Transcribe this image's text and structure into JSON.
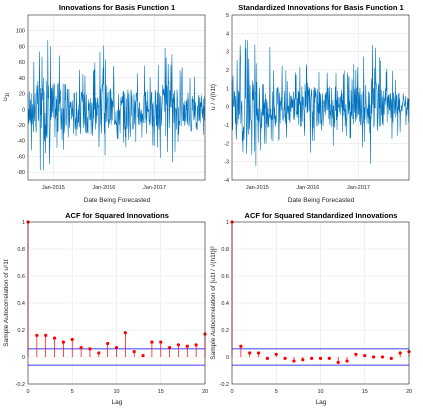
{
  "chart_data": [
    {
      "type": "line",
      "title": "Innovations for Basis Function 1",
      "xlabel": "Date Being Forecasted",
      "ylabel": "u",
      "ylabel_sub": "1t",
      "x_tick_labels": [
        "Jan-2015",
        "Jan-2016",
        "Jan-2017"
      ],
      "x_range": [
        "Jul-2014",
        "Jan-2018"
      ],
      "ylim": [
        -90,
        120
      ],
      "y_ticks": [
        -80,
        -60,
        -40,
        -20,
        0,
        20,
        40,
        60,
        80,
        100
      ],
      "grid": true,
      "color": "#0072BD",
      "x": [
        "Jul-2014",
        "Oct-2014",
        "Jan-2015",
        "Apr-2015",
        "Jul-2015",
        "Oct-2015",
        "Jan-2016",
        "Apr-2016",
        "Jul-2016",
        "Oct-2016",
        "Jan-2017",
        "Apr-2017",
        "Jul-2017",
        "Oct-2017",
        "Jan-2018"
      ],
      "y_upper": [
        60,
        105,
        95,
        90,
        65,
        60,
        82,
        55,
        70,
        60,
        62,
        82,
        58,
        55,
        45
      ],
      "y_lower": [
        -45,
        -80,
        -72,
        -55,
        -45,
        -40,
        -78,
        -45,
        -55,
        -40,
        -50,
        -82,
        -50,
        -42,
        -35
      ]
    },
    {
      "type": "line",
      "title": "Standardized Innovations for Basis Function 1",
      "xlabel": "Date Being Forecasted",
      "ylabel": "u / √(h1t)",
      "x_tick_labels": [
        "Jan-2015",
        "Jan-2016",
        "Jan-2017"
      ],
      "x_range": [
        "Jul-2014",
        "Jan-2018"
      ],
      "ylim": [
        -4,
        5
      ],
      "y_ticks": [
        -4,
        -3,
        -2,
        -1,
        0,
        1,
        2,
        3,
        4,
        5
      ],
      "grid": true,
      "color": "#0072BD",
      "x": [
        "Jul-2014",
        "Oct-2014",
        "Jan-2015",
        "Apr-2015",
        "Jul-2015",
        "Oct-2015",
        "Jan-2016",
        "Apr-2016",
        "Jul-2016",
        "Oct-2016",
        "Jan-2017",
        "Apr-2017",
        "Jul-2017",
        "Oct-2017",
        "Jan-2018"
      ],
      "y_upper": [
        1.8,
        4.2,
        3.2,
        3.4,
        2.2,
        2.4,
        3.2,
        2.6,
        3.0,
        2.1,
        2.5,
        3.6,
        2.5,
        1.9,
        1.5
      ],
      "y_lower": [
        -1.8,
        -2.8,
        -3.3,
        -2.4,
        -2.0,
        -1.6,
        -2.9,
        -1.8,
        -2.2,
        -1.6,
        -2.2,
        -3.6,
        -2.0,
        -1.7,
        -1.3
      ]
    },
    {
      "type": "stem",
      "title": "ACF for Squared Innovations",
      "xlabel": "Lag",
      "ylabel": "Sample Autocorrelation of u²1t",
      "xlim": [
        0,
        20
      ],
      "x_ticks": [
        0,
        5,
        10,
        15,
        20
      ],
      "ylim": [
        -0.2,
        1
      ],
      "y_ticks": [
        -0.2,
        0,
        0.2,
        0.4,
        0.6,
        0.8,
        1
      ],
      "grid": true,
      "stem_color": "#ff0000",
      "bound_color": "#0000ff",
      "bounds": [
        0.06,
        -0.06
      ],
      "lags": [
        0,
        1,
        2,
        3,
        4,
        5,
        6,
        7,
        8,
        9,
        10,
        11,
        12,
        13,
        14,
        15,
        16,
        17,
        18,
        19,
        20
      ],
      "values": [
        1.0,
        0.16,
        0.16,
        0.14,
        0.11,
        0.13,
        0.07,
        0.06,
        0.03,
        0.1,
        0.07,
        0.18,
        0.04,
        0.01,
        0.11,
        0.11,
        0.07,
        0.09,
        0.08,
        0.09,
        0.17
      ]
    },
    {
      "type": "stem",
      "title": "ACF for Squared Standardized Innovations",
      "xlabel": "Lag",
      "ylabel": "Sample Autocorrelation of [u1t / √(h1t)]²",
      "xlim": [
        0,
        20
      ],
      "x_ticks": [
        0,
        5,
        10,
        15,
        20
      ],
      "ylim": [
        -0.2,
        1
      ],
      "y_ticks": [
        -0.2,
        0,
        0.2,
        0.4,
        0.6,
        0.8,
        1
      ],
      "grid": true,
      "stem_color": "#ff0000",
      "bound_color": "#0000ff",
      "bounds": [
        0.06,
        -0.06
      ],
      "lags": [
        0,
        1,
        2,
        3,
        4,
        5,
        6,
        7,
        8,
        9,
        10,
        11,
        12,
        13,
        14,
        15,
        16,
        17,
        18,
        19,
        20
      ],
      "values": [
        1.0,
        0.08,
        0.03,
        0.03,
        -0.01,
        0.02,
        -0.01,
        -0.03,
        -0.02,
        -0.01,
        -0.01,
        -0.01,
        -0.04,
        -0.03,
        0.02,
        0.01,
        0.0,
        0.0,
        -0.01,
        0.03,
        0.04
      ]
    }
  ]
}
